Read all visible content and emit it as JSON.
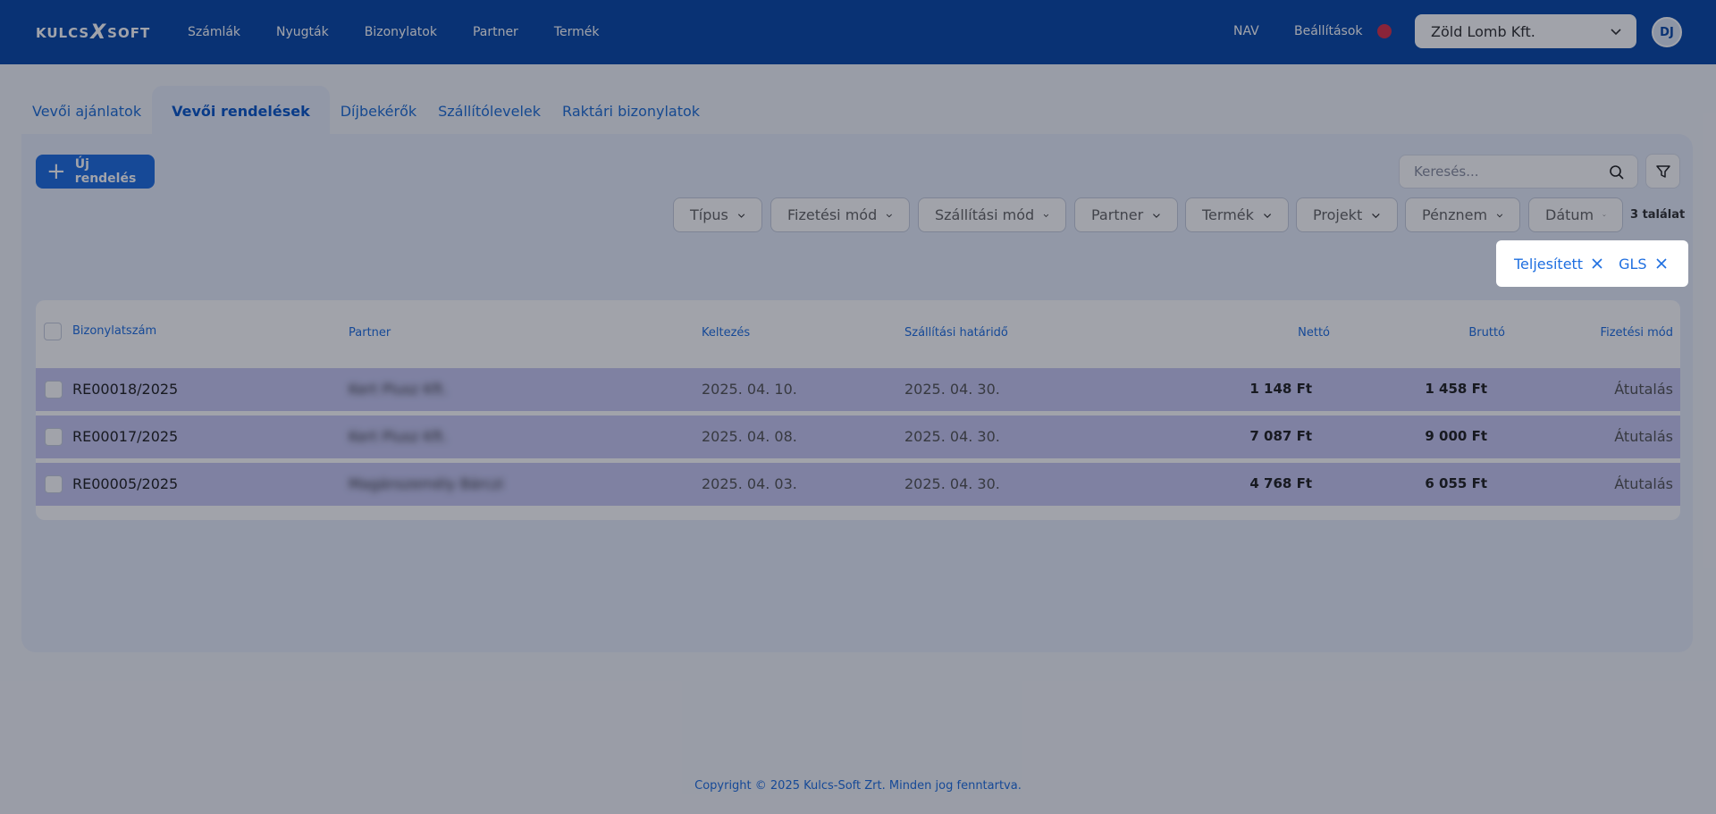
{
  "header": {
    "logo_left": "KULCS",
    "logo_x": "X",
    "logo_right": "SOFT",
    "nav": [
      "Számlák",
      "Nyugták",
      "Bizonylatok",
      "Partner",
      "Termék"
    ],
    "nav_nav": "NAV",
    "nav_settings": "Beállítások",
    "company": "Zöld Lomb Kft.",
    "avatar": "DJ"
  },
  "tabs": [
    "Vevői ajánlatok",
    "Vevői rendelések",
    "Díjbekérők",
    "Szállítólevelek",
    "Raktári bizonylatok"
  ],
  "toolbar": {
    "new_button": "Új rendelés",
    "search_placeholder": "Keresés..."
  },
  "filters": {
    "chips": [
      "Típus",
      "Fizetési mód",
      "Szállítási mód",
      "Partner",
      "Termék",
      "Projekt",
      "Pénznem",
      "Dátum"
    ],
    "results": "3 találat",
    "active": [
      "Teljesített",
      "GLS"
    ]
  },
  "table": {
    "columns": [
      "Bizonylatszám",
      "Partner",
      "Keltezés",
      "Szállítási határidő",
      "Nettó",
      "Bruttó",
      "Fizetési mód"
    ],
    "rows": [
      {
        "number": "RE00018/2025",
        "partner": "Kert Plusz Kft.",
        "date": "2025. 04. 10.",
        "deadline": "2025. 04. 30.",
        "net": "1 148 Ft",
        "gross": "1 458 Ft",
        "payment": "Átutalás"
      },
      {
        "number": "RE00017/2025",
        "partner": "Kert Plusz Kft.",
        "date": "2025. 04. 08.",
        "deadline": "2025. 04. 30.",
        "net": "7 087 Ft",
        "gross": "9 000 Ft",
        "payment": "Átutalás"
      },
      {
        "number": "RE00005/2025",
        "partner": "Magánszemély Bárczi",
        "date": "2025. 04. 03.",
        "deadline": "2025. 04. 30.",
        "net": "4 768 Ft",
        "gross": "6 055 Ft",
        "payment": "Átutalás"
      }
    ]
  },
  "footer": {
    "copyright": "Copyright © 2025 Kulcs-Soft Zrt. Minden jog fenntartva."
  },
  "colors": {
    "header": "#0a4aa8",
    "accent": "#1f6fe0",
    "row_highlight": "#c8c9f2"
  }
}
